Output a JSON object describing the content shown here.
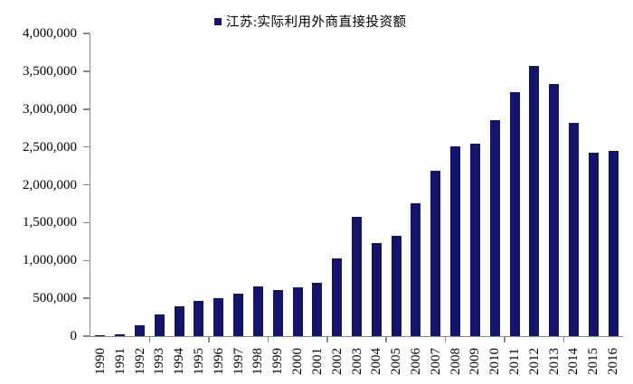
{
  "legend": {
    "label": "江苏:实际利用外商直接投资额",
    "marker_color": "#14146E"
  },
  "chart_data": {
    "type": "bar",
    "title": "",
    "xlabel": "",
    "ylabel": "",
    "legend_entries": [
      "江苏:实际利用外商直接投资额"
    ],
    "legend_position": "top-center",
    "grid": false,
    "bar_color": "#14146E",
    "axis_color": "#8a8a8a",
    "ylim": [
      0,
      4000000
    ],
    "ytick_interval": 500000,
    "ytick_labels_top_to_bottom": [
      "4,000,000",
      "3,500,000",
      "3,000,000",
      "2,500,000",
      "2,000,000",
      "1,500,000",
      "1,000,000",
      "500,000",
      "0"
    ],
    "xtick_mark_interval_years": 3,
    "categories": [
      "1990",
      "1991",
      "1992",
      "1993",
      "1994",
      "1995",
      "1996",
      "1997",
      "1998",
      "1999",
      "2000",
      "2001",
      "2002",
      "2003",
      "2004",
      "2005",
      "2006",
      "2007",
      "2008",
      "2009",
      "2010",
      "2011",
      "2012",
      "2013",
      "2014",
      "2015",
      "2016"
    ],
    "values": [
      12000,
      22000,
      140000,
      290000,
      390000,
      470000,
      500000,
      560000,
      660000,
      610000,
      640000,
      700000,
      1030000,
      1580000,
      1230000,
      1320000,
      1750000,
      2190000,
      2510000,
      2540000,
      2850000,
      3220000,
      3570000,
      3330000,
      2820000,
      2430000,
      2450000
    ]
  }
}
